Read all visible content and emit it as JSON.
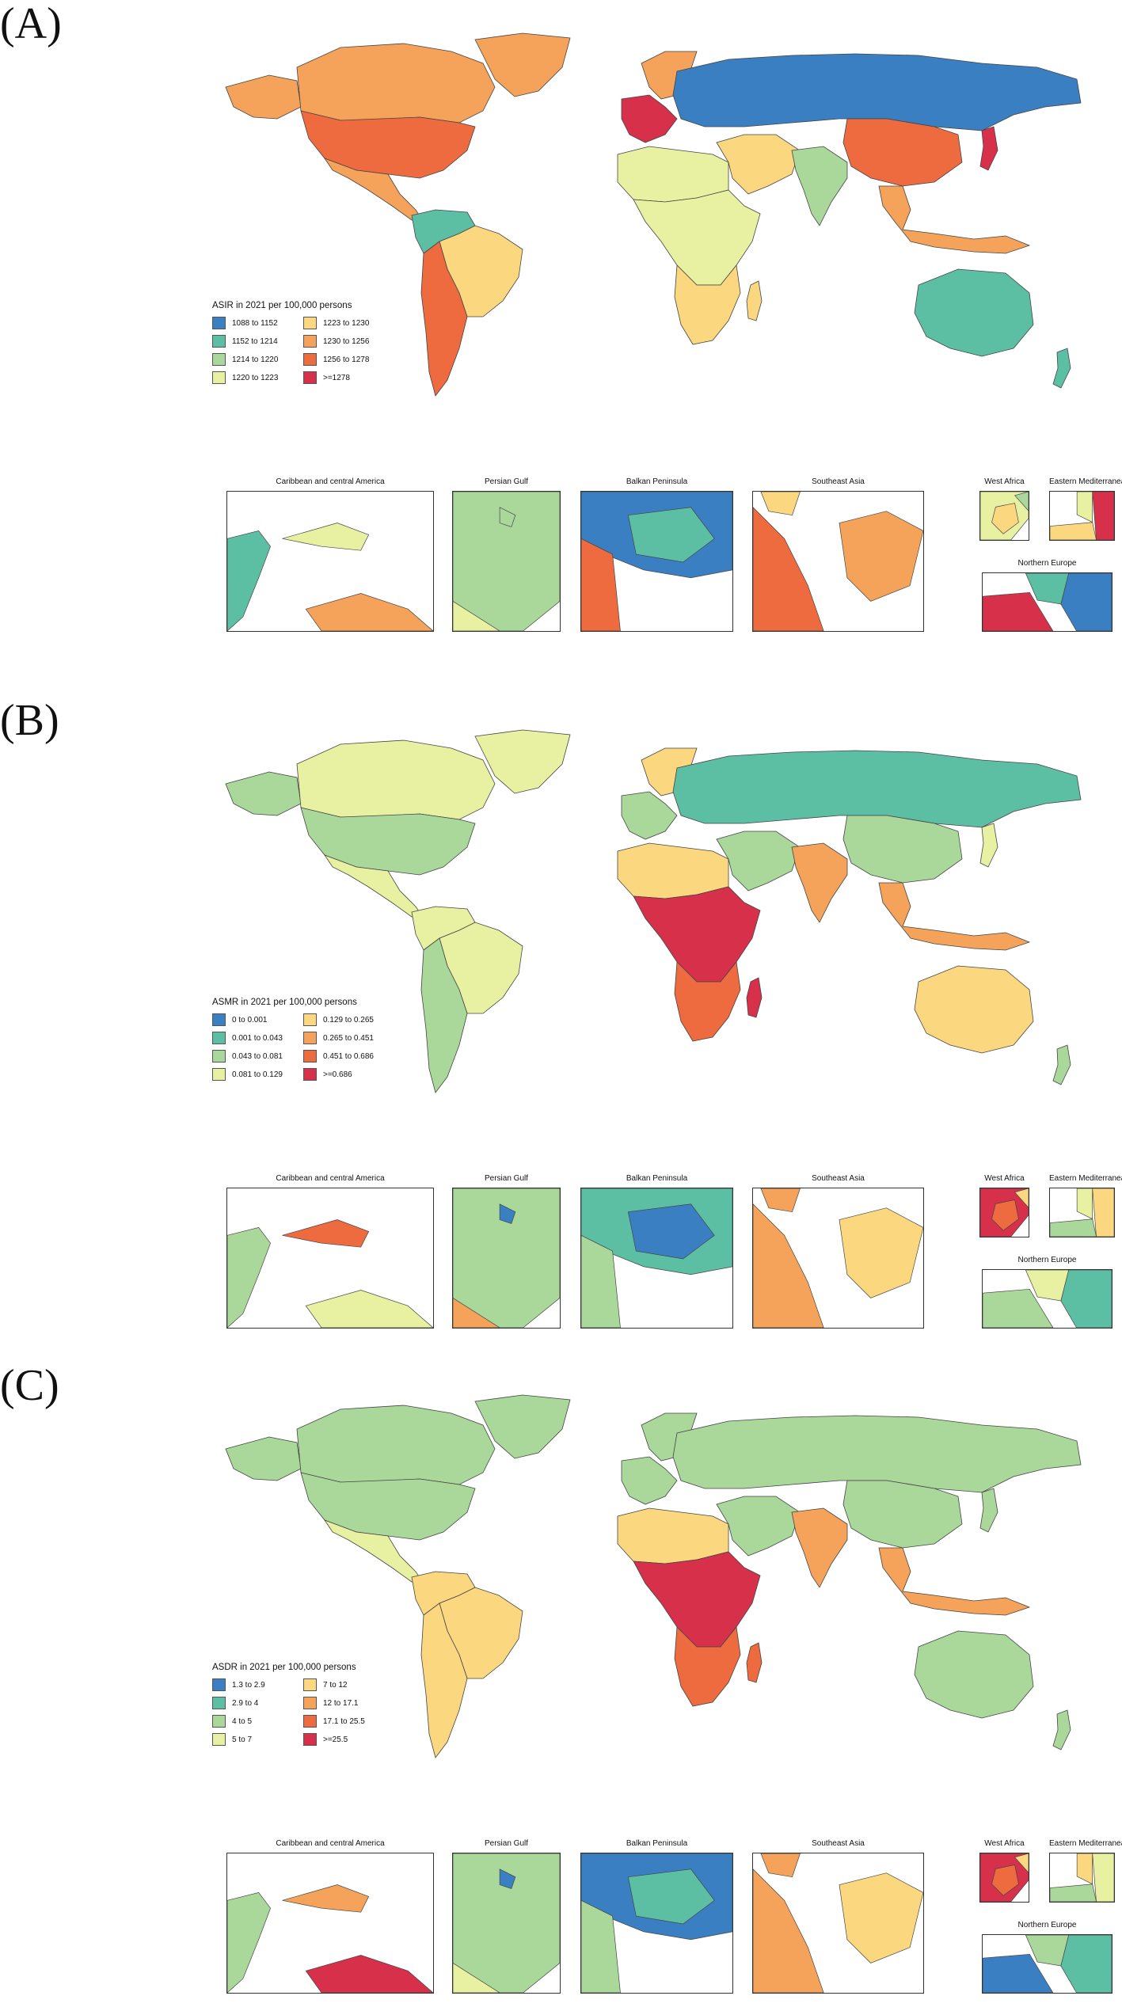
{
  "panels": [
    {
      "letter": "(A)",
      "legend_title": "ASIR in 2021 per 100,000 persons",
      "legend": [
        {
          "label": "1088 to 1152",
          "color": "#3a7fc1"
        },
        {
          "label": "1223 to 1230",
          "color": "#fbd87f"
        },
        {
          "label": "1152 to 1214",
          "color": "#5cbfa4"
        },
        {
          "label": "1230 to 1256",
          "color": "#f5a35a"
        },
        {
          "label": "1214 to 1220",
          "color": "#a9d89a"
        },
        {
          "label": "1256 to 1278",
          "color": "#ee6a3f"
        },
        {
          "label": "1220 to 1223",
          "color": "#e8f1a2"
        },
        {
          "label": ">=1278",
          "color": "#d7304a"
        }
      ],
      "regions": {
        "north_america": "#ee6a3f",
        "canada": "#f5a35a",
        "greenland": "#f5a35a",
        "alaska": "#f5a35a",
        "mexico_central": "#f5a35a",
        "south_america_north": "#5cbfa4",
        "brazil": "#fbd87f",
        "south_america_south": "#ee6a3f",
        "europe_west": "#d7304a",
        "europe_north": "#f5a35a",
        "russia": "#3a7fc1",
        "north_africa": "#e8f1a2",
        "africa_central": "#e8f1a2",
        "africa_south": "#fbd87f",
        "middle_east": "#fbd87f",
        "india": "#a9d89a",
        "china": "#ee6a3f",
        "se_asia": "#f5a35a",
        "japan": "#d7304a",
        "australia": "#5cbfa4",
        "nz": "#5cbfa4",
        "madagascar": "#fbd87f"
      },
      "insets": [
        {
          "title": "Caribbean and central America",
          "c1": "#5cbfa4",
          "c2": "#e8f1a2",
          "c3": "#f5a35a"
        },
        {
          "title": "Persian Gulf",
          "c1": "#a9d89a",
          "c2": "#a9d89a",
          "c3": "#e8f1a2"
        },
        {
          "title": "Balkan Peninsula",
          "c1": "#3a7fc1",
          "c2": "#5cbfa4",
          "c3": "#ee6a3f"
        },
        {
          "title": "Southeast Asia",
          "c1": "#ee6a3f",
          "c2": "#f5a35a",
          "c3": "#fbd87f"
        },
        {
          "title": "West Africa",
          "c1": "#e8f1a2",
          "c2": "#fbd87f",
          "c3": "#a9d89a"
        },
        {
          "title": "Eastern Mediterranean",
          "c1": "#d7304a",
          "c2": "#fbd87f",
          "c3": "#e8f1a2"
        },
        {
          "title": "Northern Europe",
          "c1": "#d7304a",
          "c2": "#3a7fc1",
          "c3": "#5cbfa4"
        }
      ]
    },
    {
      "letter": "(B)",
      "legend_title": "ASMR in 2021 per 100,000 persons",
      "legend": [
        {
          "label": "0 to 0.001",
          "color": "#3a7fc1"
        },
        {
          "label": "0.129 to 0.265",
          "color": "#fbd87f"
        },
        {
          "label": "0.001 to 0.043",
          "color": "#5cbfa4"
        },
        {
          "label": "0.265 to 0.451",
          "color": "#f5a35a"
        },
        {
          "label": "0.043 to 0.081",
          "color": "#a9d89a"
        },
        {
          "label": "0.451 to 0.686",
          "color": "#ee6a3f"
        },
        {
          "label": "0.081 to 0.129",
          "color": "#e8f1a2"
        },
        {
          "label": ">=0.686",
          "color": "#d7304a"
        }
      ],
      "regions": {
        "north_america": "#a9d89a",
        "canada": "#e8f1a2",
        "greenland": "#e8f1a2",
        "alaska": "#a9d89a",
        "mexico_central": "#e8f1a2",
        "south_america_north": "#e8f1a2",
        "brazil": "#e8f1a2",
        "south_america_south": "#a9d89a",
        "europe_west": "#a9d89a",
        "europe_north": "#fbd87f",
        "russia": "#5cbfa4",
        "north_africa": "#fbd87f",
        "africa_central": "#d7304a",
        "africa_south": "#ee6a3f",
        "middle_east": "#a9d89a",
        "india": "#f5a35a",
        "china": "#a9d89a",
        "se_asia": "#f5a35a",
        "japan": "#e8f1a2",
        "australia": "#fbd87f",
        "nz": "#a9d89a",
        "madagascar": "#d7304a"
      },
      "insets": [
        {
          "title": "Caribbean and central America",
          "c1": "#a9d89a",
          "c2": "#ee6a3f",
          "c3": "#e8f1a2"
        },
        {
          "title": "Persian Gulf",
          "c1": "#a9d89a",
          "c2": "#3a7fc1",
          "c3": "#f5a35a"
        },
        {
          "title": "Balkan Peninsula",
          "c1": "#5cbfa4",
          "c2": "#3a7fc1",
          "c3": "#a9d89a"
        },
        {
          "title": "Southeast Asia",
          "c1": "#f5a35a",
          "c2": "#fbd87f",
          "c3": "#f5a35a"
        },
        {
          "title": "West Africa",
          "c1": "#d7304a",
          "c2": "#ee6a3f",
          "c3": "#fbd87f"
        },
        {
          "title": "Eastern Mediterranean",
          "c1": "#fbd87f",
          "c2": "#a9d89a",
          "c3": "#e8f1a2"
        },
        {
          "title": "Northern Europe",
          "c1": "#a9d89a",
          "c2": "#5cbfa4",
          "c3": "#e8f1a2"
        }
      ]
    },
    {
      "letter": "(C)",
      "legend_title": "ASDR in 2021 per 100,000 persons",
      "legend": [
        {
          "label": "1.3 to 2.9",
          "color": "#3a7fc1"
        },
        {
          "label": "7 to 12",
          "color": "#fbd87f"
        },
        {
          "label": "2.9 to 4",
          "color": "#5cbfa4"
        },
        {
          "label": "12 to 17.1",
          "color": "#f5a35a"
        },
        {
          "label": "4 to 5",
          "color": "#a9d89a"
        },
        {
          "label": "17.1 to 25.5",
          "color": "#ee6a3f"
        },
        {
          "label": "5 to 7",
          "color": "#e8f1a2"
        },
        {
          "label": ">=25.5",
          "color": "#d7304a"
        }
      ],
      "regions": {
        "north_america": "#a9d89a",
        "canada": "#a9d89a",
        "greenland": "#a9d89a",
        "alaska": "#a9d89a",
        "mexico_central": "#e8f1a2",
        "south_america_north": "#fbd87f",
        "brazil": "#fbd87f",
        "south_america_south": "#fbd87f",
        "europe_west": "#a9d89a",
        "europe_north": "#a9d89a",
        "russia": "#a9d89a",
        "north_africa": "#fbd87f",
        "africa_central": "#d7304a",
        "africa_south": "#ee6a3f",
        "middle_east": "#a9d89a",
        "india": "#f5a35a",
        "china": "#a9d89a",
        "se_asia": "#f5a35a",
        "japan": "#a9d89a",
        "australia": "#a9d89a",
        "nz": "#a9d89a",
        "madagascar": "#ee6a3f"
      },
      "insets": [
        {
          "title": "Caribbean and central America",
          "c1": "#a9d89a",
          "c2": "#f5a35a",
          "c3": "#d7304a"
        },
        {
          "title": "Persian Gulf",
          "c1": "#a9d89a",
          "c2": "#3a7fc1",
          "c3": "#e8f1a2"
        },
        {
          "title": "Balkan Peninsula",
          "c1": "#3a7fc1",
          "c2": "#5cbfa4",
          "c3": "#a9d89a"
        },
        {
          "title": "Southeast Asia",
          "c1": "#f5a35a",
          "c2": "#fbd87f",
          "c3": "#f5a35a"
        },
        {
          "title": "West Africa",
          "c1": "#d7304a",
          "c2": "#ee6a3f",
          "c3": "#fbd87f"
        },
        {
          "title": "Eastern Mediterranean",
          "c1": "#e8f1a2",
          "c2": "#a9d89a",
          "c3": "#fbd87f"
        },
        {
          "title": "Northern Europe",
          "c1": "#3a7fc1",
          "c2": "#5cbfa4",
          "c3": "#a9d89a"
        }
      ]
    }
  ]
}
